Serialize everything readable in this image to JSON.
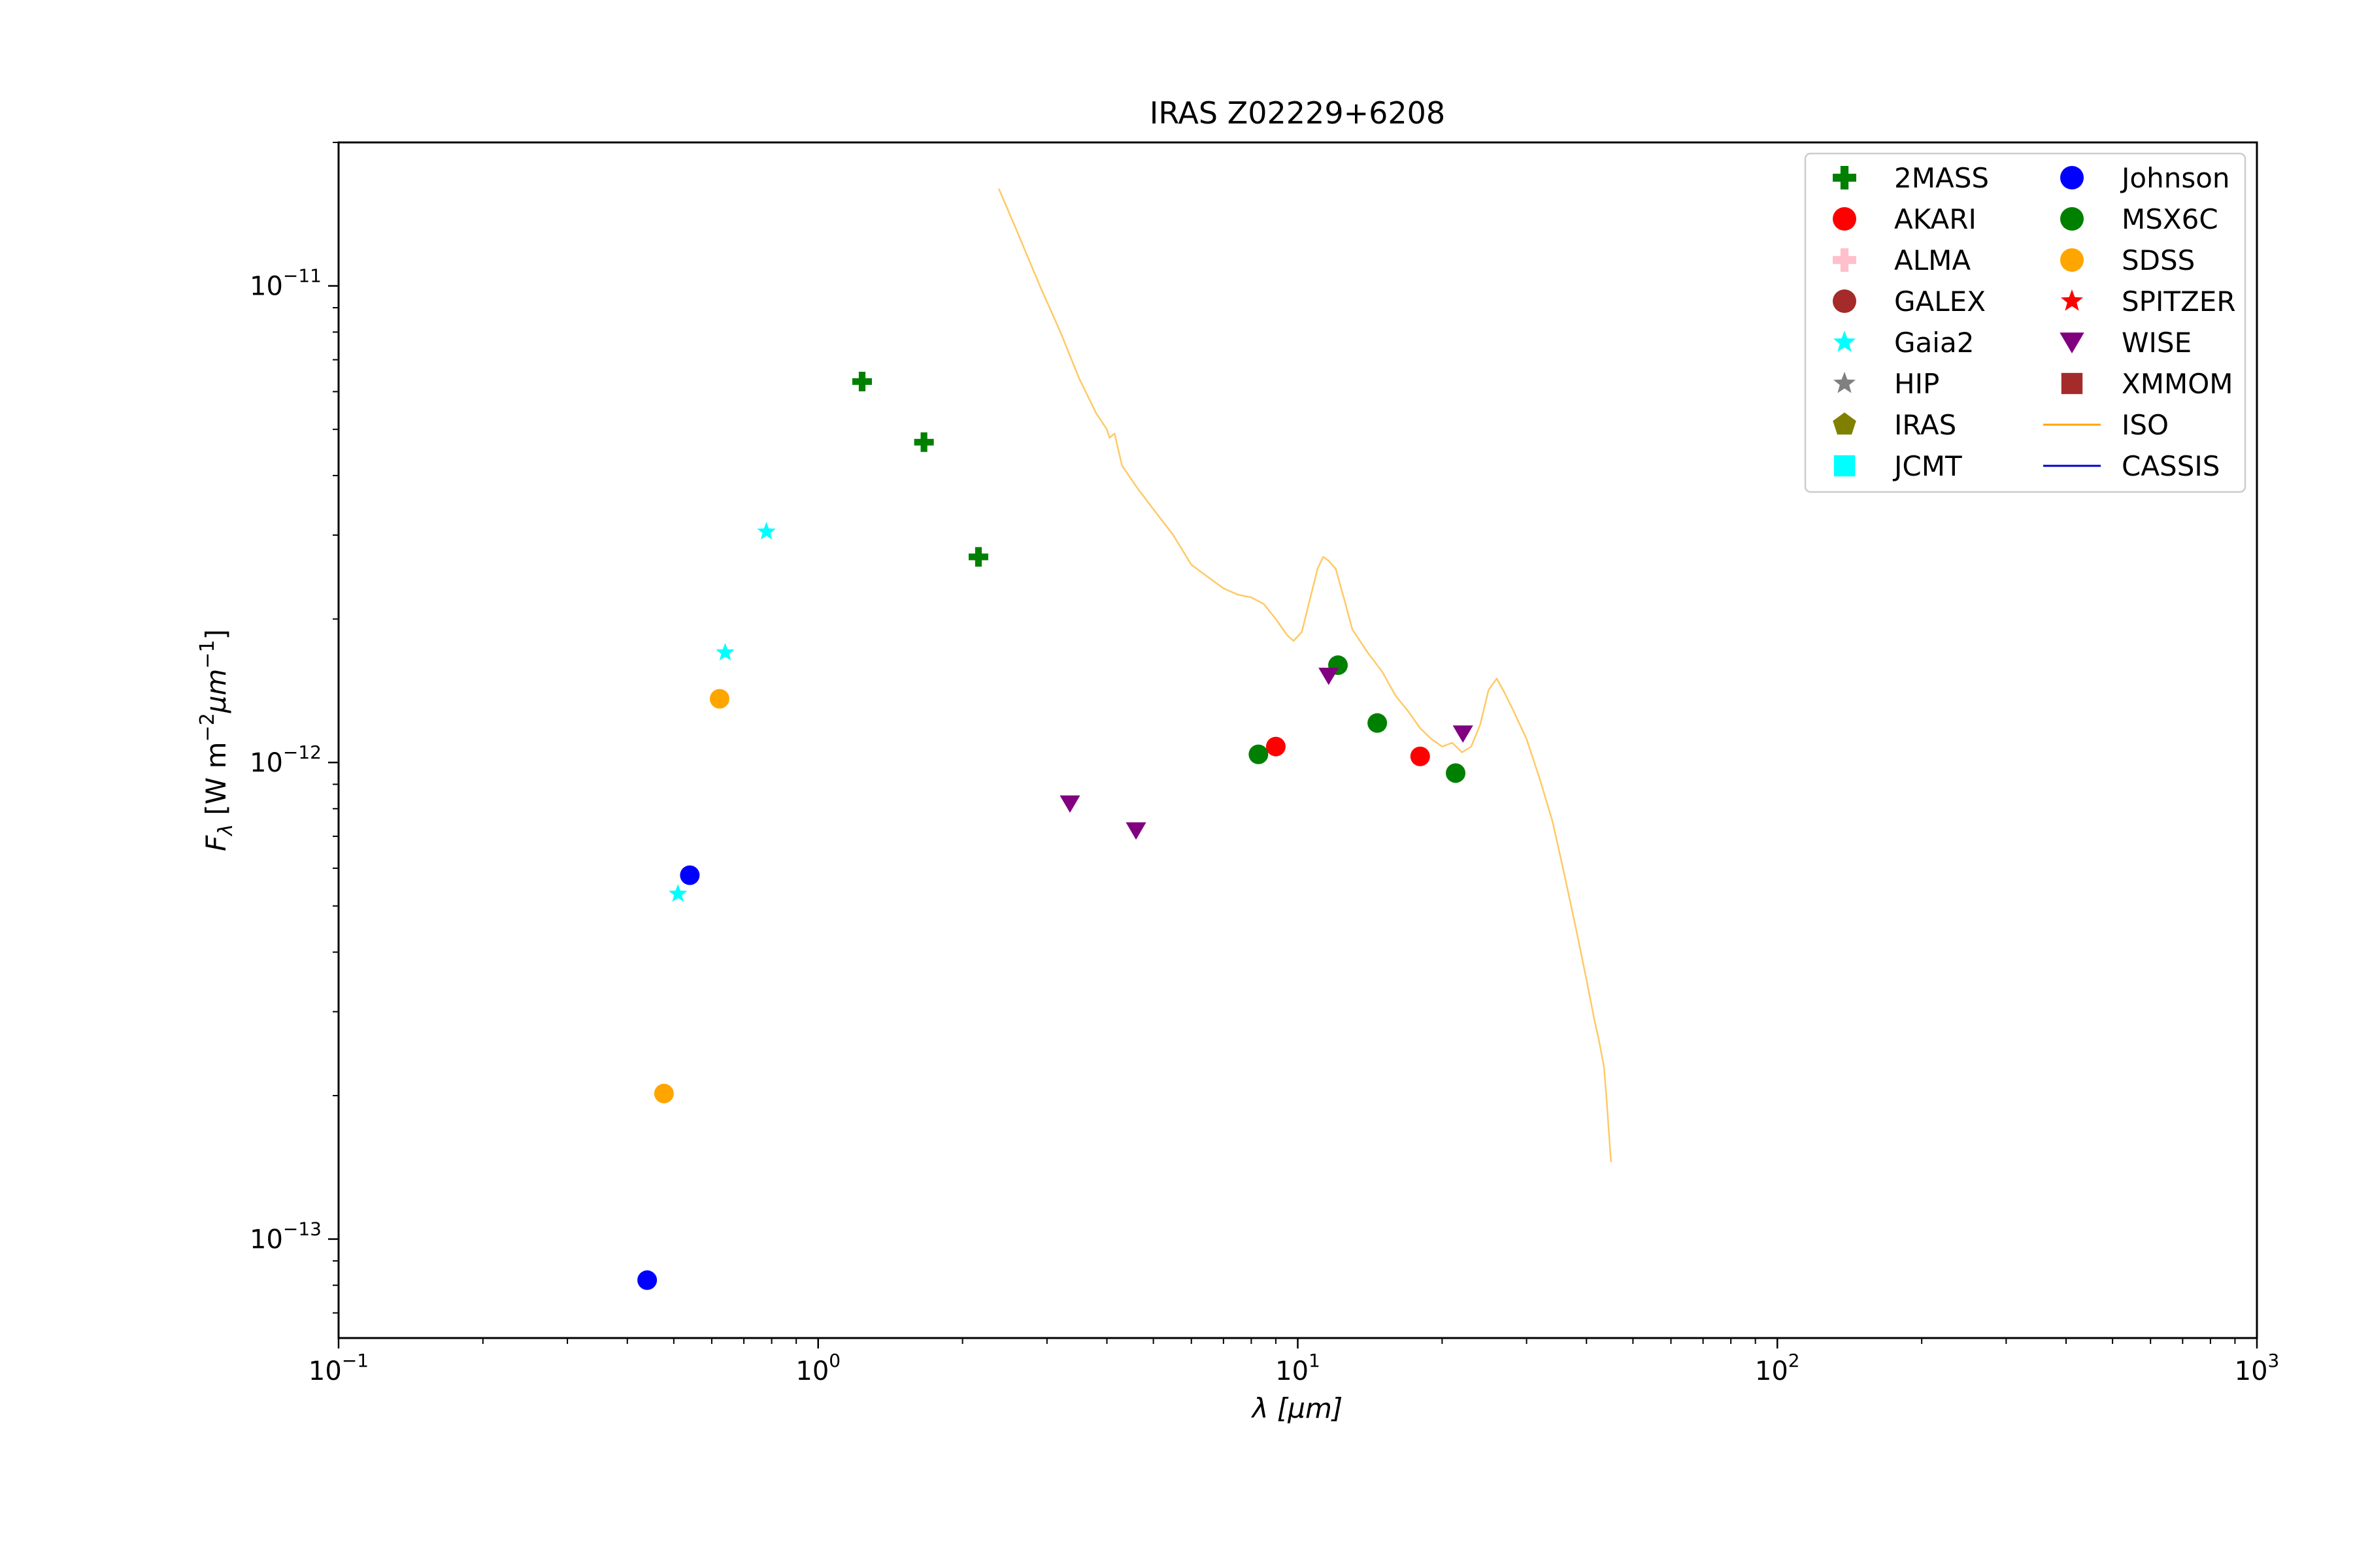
{
  "chart_data": {
    "type": "scatter",
    "title": "IRAS Z02229+6208",
    "xlabel": "λ [μm]",
    "ylabel": "F_λ [W m^-2 μm^-1]",
    "xscale": "log",
    "yscale": "log",
    "xlim": [
      0.1,
      1000
    ],
    "ylim": [
      6.2e-14,
      2e-11
    ],
    "grid": false,
    "legend_position": "top-right",
    "x_ticks": [
      {
        "value": 0.1,
        "base": "10",
        "exp": "−1"
      },
      {
        "value": 1,
        "base": "10",
        "exp": "0"
      },
      {
        "value": 10,
        "base": "10",
        "exp": "1"
      },
      {
        "value": 100,
        "base": "10",
        "exp": "2"
      },
      {
        "value": 1000,
        "base": "10",
        "exp": "3"
      }
    ],
    "y_ticks": [
      {
        "value": 1e-13,
        "base": "10",
        "exp": "−13"
      },
      {
        "value": 1e-12,
        "base": "10",
        "exp": "−12"
      },
      {
        "value": 1e-11,
        "base": "10",
        "exp": "−11"
      }
    ],
    "series": [
      {
        "name": "2MASS",
        "marker": "plus",
        "color": "#008000",
        "points": [
          [
            1.235,
            6.3e-12
          ],
          [
            1.662,
            4.7e-12
          ],
          [
            2.159,
            2.7e-12
          ]
        ]
      },
      {
        "name": "AKARI",
        "marker": "circle",
        "color": "#ff0000",
        "points": [
          [
            9.0,
            1.08e-12
          ],
          [
            18.0,
            1.03e-12
          ]
        ]
      },
      {
        "name": "ALMA",
        "marker": "plus",
        "color": "#ffc0cb",
        "points": []
      },
      {
        "name": "GALEX",
        "marker": "circle",
        "color": "#a52a2a",
        "points": []
      },
      {
        "name": "Gaia2",
        "marker": "star",
        "color": "#00ffff",
        "points": [
          [
            0.51,
            5.3e-13
          ],
          [
            0.64,
            1.7e-12
          ],
          [
            0.78,
            3.05e-12
          ]
        ]
      },
      {
        "name": "HIP",
        "marker": "star",
        "color": "#808080",
        "points": []
      },
      {
        "name": "IRAS",
        "marker": "pentagon",
        "color": "#808000",
        "points": []
      },
      {
        "name": "JCMT",
        "marker": "square",
        "color": "#00ffff",
        "points": []
      },
      {
        "name": "Johnson",
        "marker": "circle",
        "color": "#0000ff",
        "points": [
          [
            0.44,
            8.2e-14
          ],
          [
            0.54,
            5.8e-13
          ]
        ]
      },
      {
        "name": "MSX6C",
        "marker": "circle",
        "color": "#008000",
        "points": [
          [
            8.28,
            1.04e-12
          ],
          [
            12.13,
            1.6e-12
          ],
          [
            14.65,
            1.21e-12
          ],
          [
            21.34,
            9.5e-13
          ]
        ]
      },
      {
        "name": "SDSS",
        "marker": "circle",
        "color": "#ffa500",
        "points": [
          [
            0.477,
            2.02e-13
          ],
          [
            0.623,
            1.36e-12
          ]
        ]
      },
      {
        "name": "SPITZER",
        "marker": "star",
        "color": "#ff0000",
        "points": []
      },
      {
        "name": "WISE",
        "marker": "triangle-down",
        "color": "#800080",
        "points": [
          [
            3.35,
            8.2e-13
          ],
          [
            4.6,
            7.2e-13
          ],
          [
            11.6,
            1.52e-12
          ],
          [
            22.1,
            1.15e-12
          ]
        ]
      },
      {
        "name": "XMMOM",
        "marker": "square",
        "color": "#a52a2a",
        "points": []
      },
      {
        "name": "ISO",
        "marker": "line",
        "color": "#ffa500",
        "line_alpha": 0.6,
        "points": [
          [
            2.38,
            1.6e-11
          ],
          [
            2.6,
            1.3e-11
          ],
          [
            2.9,
            1e-11
          ],
          [
            3.2,
            8e-12
          ],
          [
            3.5,
            6.4e-12
          ],
          [
            3.8,
            5.4e-12
          ],
          [
            4.0,
            5e-12
          ],
          [
            4.05,
            4.8e-12
          ],
          [
            4.15,
            4.9e-12
          ],
          [
            4.3,
            4.2e-12
          ],
          [
            4.6,
            3.8e-12
          ],
          [
            5.0,
            3.4e-12
          ],
          [
            5.5,
            3e-12
          ],
          [
            6.0,
            2.6e-12
          ],
          [
            6.5,
            2.45e-12
          ],
          [
            7.0,
            2.32e-12
          ],
          [
            7.5,
            2.25e-12
          ],
          [
            8.0,
            2.22e-12
          ],
          [
            8.5,
            2.15e-12
          ],
          [
            9.0,
            2e-12
          ],
          [
            9.5,
            1.85e-12
          ],
          [
            9.8,
            1.8e-12
          ],
          [
            10.2,
            1.88e-12
          ],
          [
            10.6,
            2.2e-12
          ],
          [
            11.0,
            2.55e-12
          ],
          [
            11.3,
            2.7e-12
          ],
          [
            11.6,
            2.65e-12
          ],
          [
            12.0,
            2.55e-12
          ],
          [
            12.5,
            2.2e-12
          ],
          [
            13.0,
            1.9e-12
          ],
          [
            14.0,
            1.7e-12
          ],
          [
            15.0,
            1.55e-12
          ],
          [
            16.0,
            1.38e-12
          ],
          [
            17.0,
            1.28e-12
          ],
          [
            18.0,
            1.18e-12
          ],
          [
            19.0,
            1.12e-12
          ],
          [
            20.0,
            1.08e-12
          ],
          [
            21.0,
            1.1e-12
          ],
          [
            22.0,
            1.05e-12
          ],
          [
            23.0,
            1.08e-12
          ],
          [
            24.0,
            1.2e-12
          ],
          [
            25.0,
            1.42e-12
          ],
          [
            26.0,
            1.5e-12
          ],
          [
            27.0,
            1.4e-12
          ],
          [
            28.0,
            1.3e-12
          ],
          [
            30.0,
            1.12e-12
          ],
          [
            32.0,
            9.2e-13
          ],
          [
            34.0,
            7.5e-13
          ],
          [
            36.0,
            5.8e-13
          ],
          [
            38.0,
            4.5e-13
          ],
          [
            40.0,
            3.5e-13
          ],
          [
            41.5,
            2.9e-13
          ],
          [
            42.5,
            2.6e-13
          ],
          [
            43.5,
            2.3e-13
          ],
          [
            44.0,
            2e-13
          ],
          [
            44.5,
            1.7e-13
          ],
          [
            45.0,
            1.45e-13
          ]
        ]
      },
      {
        "name": "CASSIS",
        "marker": "line",
        "color": "#0000cd",
        "points": []
      }
    ]
  }
}
